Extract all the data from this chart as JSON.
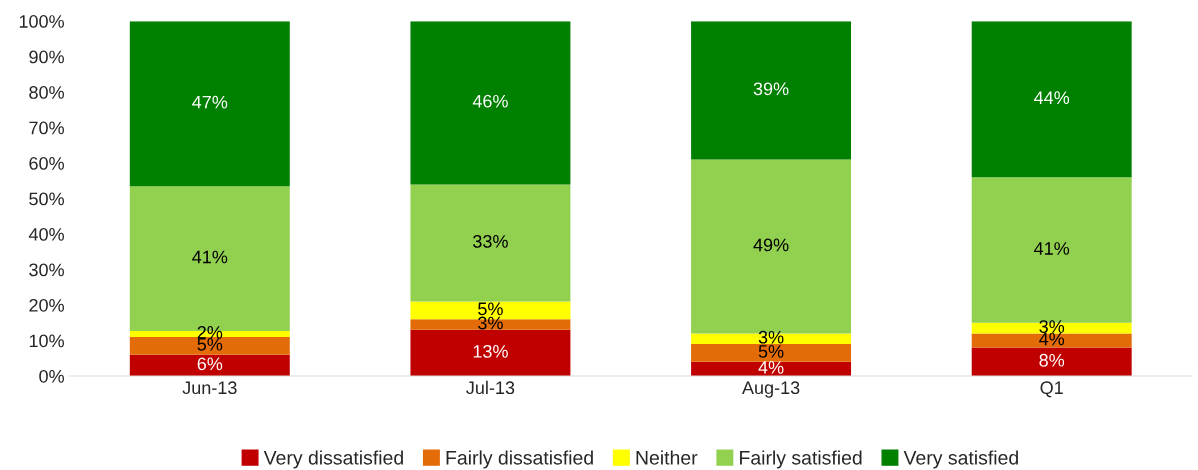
{
  "chart_data": {
    "type": "bar",
    "stacked": true,
    "categories": [
      "Jun-13",
      "Jul-13",
      "Aug-13",
      "Q1"
    ],
    "series": [
      {
        "name": "Very dissatisfied",
        "color": "#c00000",
        "values": [
          6,
          13,
          4,
          8
        ],
        "value_labels": [
          "6%",
          "13%",
          "4%",
          "8%"
        ]
      },
      {
        "name": "Fairly dissatisfied",
        "color": "#e36c09",
        "values": [
          5,
          3,
          5,
          4
        ],
        "value_labels": [
          "5%",
          "3%",
          "5%",
          "4%"
        ]
      },
      {
        "name": "Neither",
        "color": "#ffff00",
        "values": [
          1.7,
          5,
          3,
          3
        ],
        "value_labels": [
          "2%",
          "5%",
          "3%",
          "3%"
        ]
      },
      {
        "name": "Fairly satisfied",
        "color": "#92d050",
        "values": [
          40.8,
          33,
          49,
          41
        ],
        "value_labels": [
          "41%",
          "33%",
          "49%",
          "41%"
        ]
      },
      {
        "name": "Very satisfied",
        "color": "#008000",
        "values": [
          46.5,
          46,
          39,
          44
        ],
        "value_labels": [
          "47%",
          "46%",
          "39%",
          "44%"
        ]
      }
    ],
    "ylim": [
      0,
      100
    ],
    "yticks": [
      {
        "value": 0,
        "label": "0%"
      },
      {
        "value": 10,
        "label": "10%"
      },
      {
        "value": 20,
        "label": "20%"
      },
      {
        "value": 30,
        "label": "30%"
      },
      {
        "value": 40,
        "label": "40%"
      },
      {
        "value": 50,
        "label": "50%"
      },
      {
        "value": 60,
        "label": "60%"
      },
      {
        "value": 70,
        "label": "70%"
      },
      {
        "value": 80,
        "label": "80%"
      },
      {
        "value": 90,
        "label": "90%"
      },
      {
        "value": 100,
        "label": "100%"
      }
    ],
    "grid": false,
    "legend": "bottom"
  }
}
